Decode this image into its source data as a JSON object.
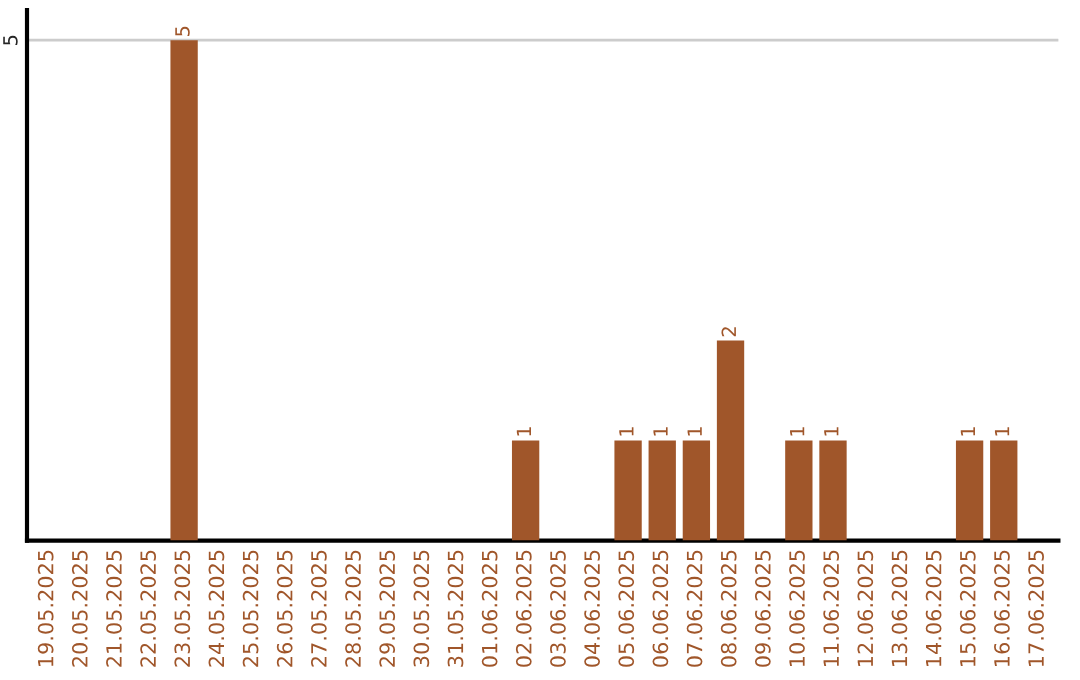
{
  "chart_data": {
    "type": "bar",
    "categories": [
      "19.05.2025",
      "20.05.2025",
      "21.05.2025",
      "22.05.2025",
      "23.05.2025",
      "24.05.2025",
      "25.05.2025",
      "26.05.2025",
      "27.05.2025",
      "28.05.2025",
      "29.05.2025",
      "30.05.2025",
      "31.05.2025",
      "01.06.2025",
      "02.06.2025",
      "03.06.2025",
      "04.06.2025",
      "05.06.2025",
      "06.06.2025",
      "07.06.2025",
      "08.06.2025",
      "09.06.2025",
      "10.06.2025",
      "11.06.2025",
      "12.06.2025",
      "13.06.2025",
      "14.06.2025",
      "15.06.2025",
      "16.06.2025",
      "17.06.2025"
    ],
    "values": [
      0,
      0,
      0,
      0,
      5,
      0,
      0,
      0,
      0,
      0,
      0,
      0,
      0,
      0,
      1,
      0,
      0,
      1,
      1,
      1,
      2,
      0,
      1,
      1,
      0,
      0,
      0,
      1,
      1,
      0
    ],
    "value_labels": [
      null,
      null,
      null,
      null,
      "5",
      null,
      null,
      null,
      null,
      null,
      null,
      null,
      null,
      null,
      "1",
      null,
      null,
      "1",
      "1",
      "1",
      "2",
      null,
      "1",
      "1",
      null,
      null,
      null,
      "1",
      "1",
      null
    ],
    "color": "#a0562a",
    "ylim": [
      0,
      5.3
    ],
    "yticks": [
      5
    ],
    "grid": "y"
  }
}
